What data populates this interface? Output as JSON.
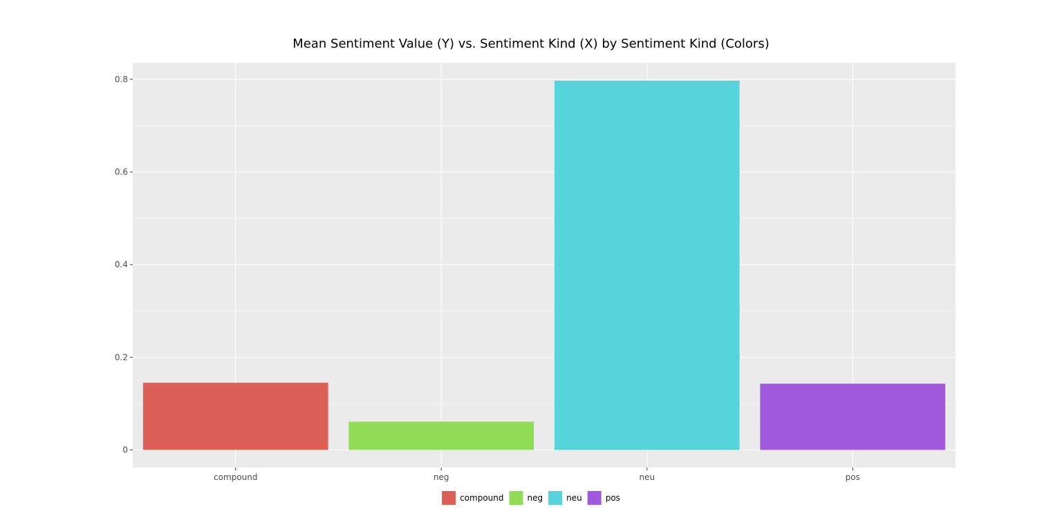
{
  "chart_data": {
    "type": "bar",
    "title": "Mean Sentiment Value (Y) vs. Sentiment Kind (X) by Sentiment Kind (Colors)",
    "xlabel": "",
    "ylabel": "",
    "categories": [
      "compound",
      "neg",
      "neu",
      "pos"
    ],
    "values": [
      0.145,
      0.061,
      0.797,
      0.143
    ],
    "colors": [
      "#dd6058",
      "#90dc56",
      "#57d3da",
      "#a058dd"
    ],
    "ylim": [
      -0.038,
      0.8355
    ],
    "yticks": [
      0,
      0.2,
      0.4,
      0.6,
      0.8
    ],
    "ytick_labels": [
      "0",
      "0.2",
      "0.4",
      "0.6",
      "0.8"
    ],
    "grid": true,
    "panel_background": "#ebebeb",
    "grid_color": "#ffffff",
    "legend": {
      "position": "bottom",
      "entries": [
        "compound",
        "neg",
        "neu",
        "pos"
      ]
    }
  }
}
